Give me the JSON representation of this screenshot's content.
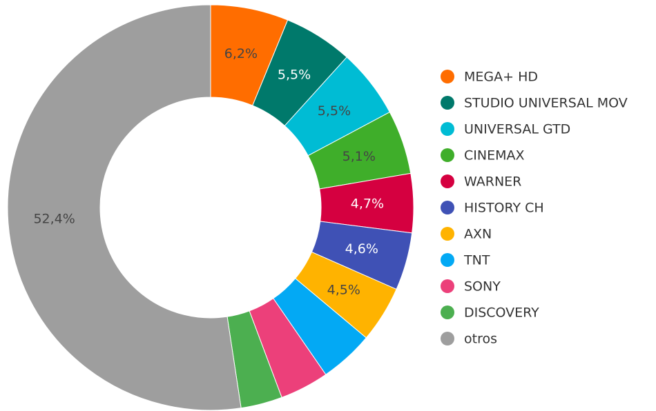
{
  "chart_data": {
    "type": "pie",
    "categories": [
      "MEGA+ HD",
      "STUDIO UNIVERSAL MOV",
      "UNIVERSAL GTD",
      "CINEMAX",
      "WARNER",
      "HISTORY CH",
      "AXN",
      "TNT",
      "SONY",
      "DISCOVERY",
      "otros"
    ],
    "values": [
      6.2,
      5.5,
      5.5,
      5.1,
      4.7,
      4.6,
      4.5,
      4.3,
      3.9,
      3.3,
      52.4
    ],
    "value_labels": [
      "6,2%",
      "5,5%",
      "5,5%",
      "5,1%",
      "4,7%",
      "4,6%",
      "4,5%",
      null,
      null,
      null,
      "52,4%"
    ],
    "colors": [
      "#ff6d00",
      "#00796b",
      "#00bcd4",
      "#3fae2a",
      "#d50040",
      "#3f51b5",
      "#ffb300",
      "#03a9f4",
      "#ec407a",
      "#4caf50",
      "#9e9e9e"
    ],
    "legend": "right"
  }
}
